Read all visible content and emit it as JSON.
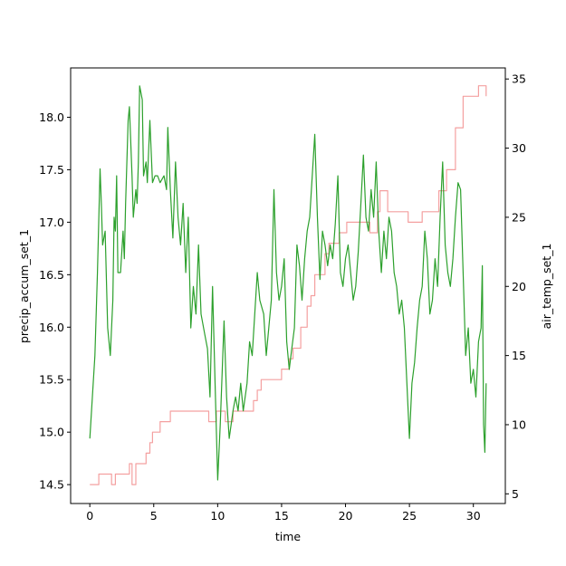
{
  "chart_data": {
    "type": "line",
    "title": "",
    "xlabel": "time",
    "ylabel_left": "precip_accum_set_1",
    "ylabel_right": "air_temp_set_1",
    "xlim": [
      -1.5,
      32.5
    ],
    "ylim_left": [
      14.32,
      18.47
    ],
    "ylim_right": [
      4.3,
      35.8
    ],
    "x_ticks": [
      0,
      5,
      10,
      15,
      20,
      25,
      30
    ],
    "y_left_ticks": [
      14.5,
      15.0,
      15.5,
      16.0,
      16.5,
      17.0,
      17.5,
      18.0
    ],
    "y_right_ticks": [
      5,
      10,
      15,
      20,
      25,
      30,
      35
    ],
    "grid": false,
    "series": [
      {
        "axis": "left",
        "color": "#f4a0a0",
        "step": true,
        "points": [
          [
            0,
            14.5
          ],
          [
            0.7,
            14.6
          ],
          [
            1.7,
            14.5
          ],
          [
            2.0,
            14.6
          ],
          [
            3.1,
            14.7
          ],
          [
            3.3,
            14.5
          ],
          [
            3.6,
            14.7
          ],
          [
            4.4,
            14.8
          ],
          [
            4.7,
            14.9
          ],
          [
            4.9,
            15.0
          ],
          [
            5.5,
            15.1
          ],
          [
            6.3,
            15.2
          ],
          [
            9.3,
            15.1
          ],
          [
            9.9,
            15.2
          ],
          [
            10.6,
            15.1
          ],
          [
            11.2,
            15.2
          ],
          [
            12.8,
            15.3
          ],
          [
            13.1,
            15.4
          ],
          [
            13.4,
            15.5
          ],
          [
            15.0,
            15.6
          ],
          [
            15.6,
            15.7
          ],
          [
            15.9,
            15.8
          ],
          [
            16.5,
            16.0
          ],
          [
            17.0,
            16.2
          ],
          [
            17.3,
            16.3
          ],
          [
            17.6,
            16.5
          ],
          [
            18.4,
            16.7
          ],
          [
            18.7,
            16.8
          ],
          [
            19.5,
            16.9
          ],
          [
            20.1,
            17.0
          ],
          [
            21.9,
            16.9
          ],
          [
            22.5,
            17.1
          ],
          [
            22.7,
            17.3
          ],
          [
            23.3,
            17.1
          ],
          [
            24.9,
            17.0
          ],
          [
            26.0,
            17.1
          ],
          [
            27.3,
            17.3
          ],
          [
            27.9,
            17.5
          ],
          [
            28.6,
            17.9
          ],
          [
            29.2,
            18.2
          ],
          [
            30.4,
            18.3
          ],
          [
            31.0,
            18.2
          ]
        ]
      },
      {
        "axis": "right",
        "color": "#2ca02c",
        "step": false,
        "points": [
          [
            0,
            9.0
          ],
          [
            0.2,
            12.0
          ],
          [
            0.4,
            15.0
          ],
          [
            0.6,
            21.0
          ],
          [
            0.8,
            28.5
          ],
          [
            0.9,
            26.0
          ],
          [
            1.0,
            23.0
          ],
          [
            1.2,
            24.0
          ],
          [
            1.4,
            17.0
          ],
          [
            1.6,
            15.0
          ],
          [
            1.8,
            19.0
          ],
          [
            1.9,
            25.0
          ],
          [
            2.0,
            24.0
          ],
          [
            2.1,
            28.0
          ],
          [
            2.2,
            21.0
          ],
          [
            2.4,
            21.0
          ],
          [
            2.6,
            24.0
          ],
          [
            2.7,
            22.0
          ],
          [
            2.8,
            26.0
          ],
          [
            3.0,
            32.0
          ],
          [
            3.1,
            33.0
          ],
          [
            3.3,
            28.0
          ],
          [
            3.4,
            25.0
          ],
          [
            3.6,
            27.0
          ],
          [
            3.7,
            26.0
          ],
          [
            3.8,
            29.0
          ],
          [
            3.9,
            34.5
          ],
          [
            4.1,
            33.5
          ],
          [
            4.2,
            28.0
          ],
          [
            4.4,
            29.0
          ],
          [
            4.5,
            27.5
          ],
          [
            4.7,
            32.0
          ],
          [
            4.9,
            27.5
          ],
          [
            5.1,
            28.0
          ],
          [
            5.3,
            28.0
          ],
          [
            5.5,
            27.5
          ],
          [
            5.8,
            28.0
          ],
          [
            6.0,
            27.0
          ],
          [
            6.1,
            31.5
          ],
          [
            6.3,
            27.0
          ],
          [
            6.5,
            23.5
          ],
          [
            6.7,
            29.0
          ],
          [
            6.9,
            25.0
          ],
          [
            7.1,
            23.0
          ],
          [
            7.3,
            26.0
          ],
          [
            7.5,
            21.0
          ],
          [
            7.7,
            25.0
          ],
          [
            7.9,
            17.0
          ],
          [
            8.1,
            20.0
          ],
          [
            8.3,
            18.0
          ],
          [
            8.5,
            23.0
          ],
          [
            8.7,
            18.0
          ],
          [
            9.0,
            16.5
          ],
          [
            9.2,
            15.5
          ],
          [
            9.4,
            12.0
          ],
          [
            9.6,
            20.0
          ],
          [
            9.8,
            13.0
          ],
          [
            10.0,
            6.0
          ],
          [
            10.2,
            10.0
          ],
          [
            10.5,
            17.5
          ],
          [
            10.7,
            12.0
          ],
          [
            10.9,
            9.0
          ],
          [
            11.2,
            11.0
          ],
          [
            11.4,
            12.0
          ],
          [
            11.6,
            11.0
          ],
          [
            11.8,
            13.0
          ],
          [
            12.0,
            11.0
          ],
          [
            12.3,
            13.0
          ],
          [
            12.5,
            16.0
          ],
          [
            12.7,
            15.0
          ],
          [
            12.9,
            18.0
          ],
          [
            13.1,
            21.0
          ],
          [
            13.3,
            19.0
          ],
          [
            13.6,
            18.0
          ],
          [
            13.8,
            15.0
          ],
          [
            14.0,
            17.0
          ],
          [
            14.2,
            19.0
          ],
          [
            14.4,
            27.0
          ],
          [
            14.6,
            21.0
          ],
          [
            14.8,
            19.0
          ],
          [
            15.0,
            20.0
          ],
          [
            15.2,
            22.0
          ],
          [
            15.4,
            16.0
          ],
          [
            15.6,
            14.0
          ],
          [
            15.8,
            15.5
          ],
          [
            16.0,
            17.0
          ],
          [
            16.2,
            23.0
          ],
          [
            16.4,
            21.5
          ],
          [
            16.6,
            19.0
          ],
          [
            16.8,
            22.0
          ],
          [
            17.0,
            24.0
          ],
          [
            17.2,
            25.0
          ],
          [
            17.4,
            28.0
          ],
          [
            17.6,
            31.0
          ],
          [
            17.8,
            25.0
          ],
          [
            18.0,
            20.5
          ],
          [
            18.2,
            24.0
          ],
          [
            18.4,
            23.0
          ],
          [
            18.6,
            21.5
          ],
          [
            18.8,
            23.0
          ],
          [
            19.0,
            22.0
          ],
          [
            19.2,
            24.5
          ],
          [
            19.4,
            28.0
          ],
          [
            19.6,
            21.0
          ],
          [
            19.8,
            20.0
          ],
          [
            20.0,
            22.0
          ],
          [
            20.2,
            23.0
          ],
          [
            20.4,
            21.0
          ],
          [
            20.6,
            19.0
          ],
          [
            20.8,
            20.0
          ],
          [
            21.0,
            22.5
          ],
          [
            21.2,
            26.0
          ],
          [
            21.4,
            29.5
          ],
          [
            21.6,
            25.0
          ],
          [
            21.8,
            24.0
          ],
          [
            22.0,
            27.0
          ],
          [
            22.2,
            25.0
          ],
          [
            22.4,
            29.0
          ],
          [
            22.6,
            24.0
          ],
          [
            22.8,
            21.0
          ],
          [
            23.0,
            24.0
          ],
          [
            23.2,
            22.0
          ],
          [
            23.4,
            25.0
          ],
          [
            23.6,
            24.0
          ],
          [
            23.8,
            21.0
          ],
          [
            24.0,
            20.0
          ],
          [
            24.2,
            18.0
          ],
          [
            24.4,
            19.0
          ],
          [
            24.6,
            17.0
          ],
          [
            24.8,
            13.0
          ],
          [
            25.0,
            9.0
          ],
          [
            25.2,
            13.0
          ],
          [
            25.4,
            14.5
          ],
          [
            25.6,
            17.0
          ],
          [
            25.8,
            19.0
          ],
          [
            26.0,
            20.0
          ],
          [
            26.2,
            24.0
          ],
          [
            26.4,
            22.0
          ],
          [
            26.6,
            18.0
          ],
          [
            26.8,
            19.0
          ],
          [
            27.0,
            22.0
          ],
          [
            27.2,
            20.0
          ],
          [
            27.4,
            25.0
          ],
          [
            27.6,
            29.0
          ],
          [
            27.8,
            23.0
          ],
          [
            28.0,
            21.0
          ],
          [
            28.2,
            20.0
          ],
          [
            28.4,
            22.0
          ],
          [
            28.6,
            25.0
          ],
          [
            28.8,
            27.5
          ],
          [
            29.0,
            27.0
          ],
          [
            29.2,
            21.0
          ],
          [
            29.4,
            15.0
          ],
          [
            29.6,
            17.0
          ],
          [
            29.8,
            13.0
          ],
          [
            30.0,
            14.0
          ],
          [
            30.2,
            12.0
          ],
          [
            30.4,
            16.0
          ],
          [
            30.6,
            17.0
          ],
          [
            30.7,
            21.5
          ],
          [
            30.8,
            10.0
          ],
          [
            30.9,
            8.0
          ],
          [
            31.0,
            13.0
          ]
        ]
      }
    ]
  }
}
